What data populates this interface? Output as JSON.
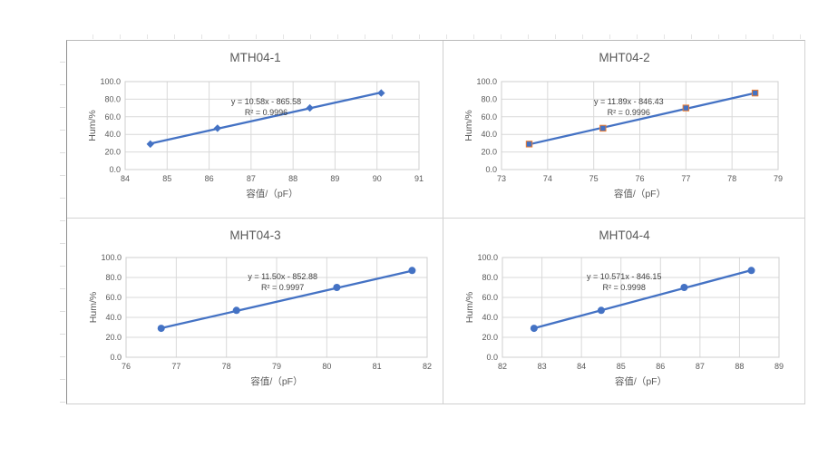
{
  "colors": {
    "series_line": "#4472C4",
    "marker_fill": "#4472C4",
    "marker_edge_chart2": "#ED7D31",
    "gridline": "#d9d9d9",
    "plot_border": "#cfcfcf",
    "axis_text": "#595959",
    "equation_text": "#404040"
  },
  "chart_data": [
    {
      "type": "scatter",
      "title": "MTH04-1",
      "xlabel": "容值/（pF）",
      "ylabel": "Hum/%",
      "equation": "y = 10.58x - 865.58",
      "r2": "R² = 0.9996",
      "trend": {
        "slope": 10.58,
        "intercept": -865.58
      },
      "points": [
        [
          84.6,
          29
        ],
        [
          86.2,
          47
        ],
        [
          88.4,
          70
        ],
        [
          90.1,
          87
        ]
      ],
      "x_ticks": [
        84,
        85,
        86,
        87,
        88,
        89,
        90,
        91
      ],
      "xlim": [
        84,
        91
      ],
      "y_tick_labels": [
        "0.0",
        "20.0",
        "40.0",
        "60.0",
        "80.0",
        "100.0"
      ],
      "ylim": [
        0,
        100
      ],
      "grid": "on",
      "legend": "none",
      "marker": "diamond",
      "eq_pos": [
        0.48,
        0.26
      ]
    },
    {
      "type": "scatter",
      "title": "MHT04-2",
      "xlabel": "容值/（pF）",
      "ylabel": "Hum/%",
      "equation": "y = 11.89x - 846.43",
      "r2": "R² = 0.9996",
      "trend": {
        "slope": 11.89,
        "intercept": -846.43
      },
      "points": [
        [
          73.6,
          29
        ],
        [
          75.2,
          47
        ],
        [
          77.0,
          70
        ],
        [
          78.5,
          87
        ]
      ],
      "x_ticks": [
        73,
        74,
        75,
        76,
        77,
        78,
        79
      ],
      "xlim": [
        73,
        79
      ],
      "y_tick_labels": [
        "0.0",
        "20.0",
        "40.0",
        "60.0",
        "80.0",
        "100.0"
      ],
      "ylim": [
        0,
        100
      ],
      "grid": "on",
      "legend": "none",
      "marker": "square",
      "eq_pos": [
        0.46,
        0.26
      ]
    },
    {
      "type": "scatter",
      "title": "MHT04-3",
      "xlabel": "容值/（pF）",
      "ylabel": "Hum/%",
      "equation": "y = 11.50x - 852.88",
      "r2": "R² = 0.9997",
      "trend": {
        "slope": 11.5,
        "intercept": -852.88
      },
      "points": [
        [
          76.7,
          29
        ],
        [
          78.2,
          47
        ],
        [
          80.2,
          70
        ],
        [
          81.7,
          87
        ]
      ],
      "x_ticks": [
        76,
        77,
        78,
        79,
        80,
        81,
        82
      ],
      "xlim": [
        76,
        82
      ],
      "y_tick_labels": [
        "0.0",
        "20.0",
        "40.0",
        "60.0",
        "80.0",
        "100.0"
      ],
      "ylim": [
        0,
        100
      ],
      "grid": "on",
      "legend": "none",
      "marker": "circle",
      "eq_pos": [
        0.52,
        0.22
      ]
    },
    {
      "type": "scatter",
      "title": "MHT04-4",
      "xlabel": "容值/（pF）",
      "ylabel": "Hum/%",
      "equation": "y = 10.571x - 846.15",
      "r2": "R² = 0.9998",
      "trend": {
        "slope": 10.571,
        "intercept": -846.15
      },
      "points": [
        [
          82.8,
          29
        ],
        [
          84.5,
          47
        ],
        [
          86.6,
          70
        ],
        [
          88.3,
          87
        ]
      ],
      "x_ticks": [
        82,
        83,
        84,
        85,
        86,
        87,
        88,
        89
      ],
      "xlim": [
        82,
        89
      ],
      "y_tick_labels": [
        "0.0",
        "20.0",
        "40.0",
        "60.0",
        "80.0",
        "100.0"
      ],
      "ylim": [
        0,
        100
      ],
      "grid": "on",
      "legend": "none",
      "marker": "circle",
      "eq_pos": [
        0.44,
        0.22
      ]
    }
  ]
}
